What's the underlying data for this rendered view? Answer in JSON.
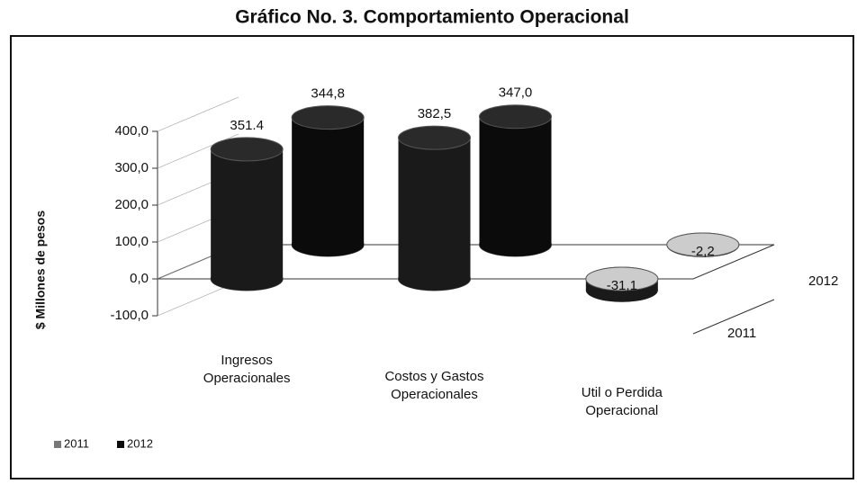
{
  "chart_data": {
    "type": "bar3d",
    "title": "Gráfico No. 3. Comportamiento Operacional",
    "y_label": "$ Millones de pesos",
    "categories": [
      "Ingresos Operacionales",
      "Costos y Gastos Operacionales",
      "Util o Perdida Operacional"
    ],
    "series": [
      {
        "name": "2011",
        "color": "#1a1a1a",
        "values": [
          351.4,
          382.5,
          -31.1
        ],
        "value_labels": [
          "351.4",
          "382,5",
          "-31,1"
        ]
      },
      {
        "name": "2012",
        "color": "#0b0b0b",
        "values": [
          344.8,
          347.0,
          -2.2
        ],
        "value_labels": [
          "344,8",
          "347,0",
          "-2,2"
        ]
      }
    ],
    "ylim": [
      -100,
      400
    ],
    "yticks": [
      {
        "value": -100,
        "label": "-100,0"
      },
      {
        "value": 0,
        "label": "0,0"
      },
      {
        "value": 100,
        "label": "100,0"
      },
      {
        "value": 200,
        "label": "200,0"
      },
      {
        "value": 300,
        "label": "300,0"
      },
      {
        "value": 400,
        "label": "400,0"
      }
    ],
    "legend": "bottom-left"
  }
}
